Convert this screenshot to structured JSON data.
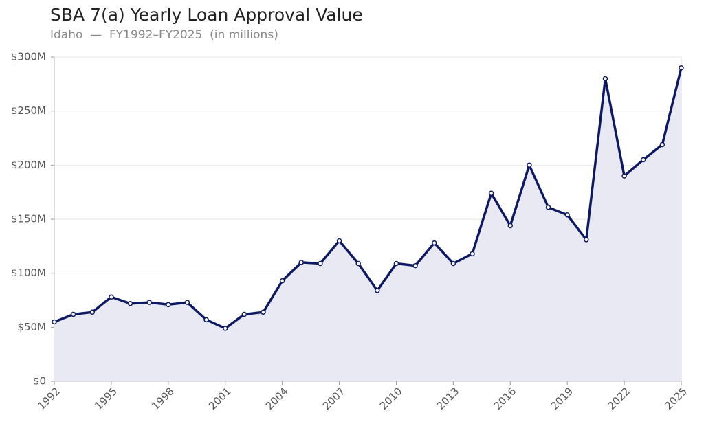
{
  "chart_data": {
    "type": "line",
    "title": "SBA 7(a) Yearly Loan Approval Value",
    "subtitle": "Idaho  —  FY1992–FY2025  (in millions)",
    "x": [
      1992,
      1993,
      1994,
      1995,
      1996,
      1997,
      1998,
      1999,
      2000,
      2001,
      2002,
      2003,
      2004,
      2005,
      2006,
      2007,
      2008,
      2009,
      2010,
      2011,
      2012,
      2013,
      2014,
      2015,
      2016,
      2017,
      2018,
      2019,
      2020,
      2021,
      2022,
      2023,
      2024,
      2025
    ],
    "values": [
      55,
      62,
      64,
      78,
      72,
      73,
      71,
      73,
      57,
      49,
      62,
      64,
      93,
      110,
      109,
      130,
      109,
      84,
      109,
      107,
      128,
      109,
      118,
      174,
      144,
      200,
      161,
      154,
      131,
      280,
      190,
      205,
      219,
      290
    ],
    "color": "#0d1a63",
    "fill_color": "#e8e9f3",
    "xlim": [
      1992,
      2025
    ],
    "xticks": [
      1992,
      1995,
      1998,
      2001,
      2004,
      2007,
      2010,
      2013,
      2016,
      2019,
      2022,
      2025
    ],
    "ylim": [
      0,
      300
    ],
    "yticks": [
      {
        "value": 0,
        "label": "$0"
      },
      {
        "value": 50,
        "label": "$50M"
      },
      {
        "value": 100,
        "label": "$100M"
      },
      {
        "value": 150,
        "label": "$150M"
      },
      {
        "value": 200,
        "label": "$200M"
      },
      {
        "value": 250,
        "label": "$250M"
      },
      {
        "value": 300,
        "label": "$300M"
      }
    ],
    "grid": true
  }
}
